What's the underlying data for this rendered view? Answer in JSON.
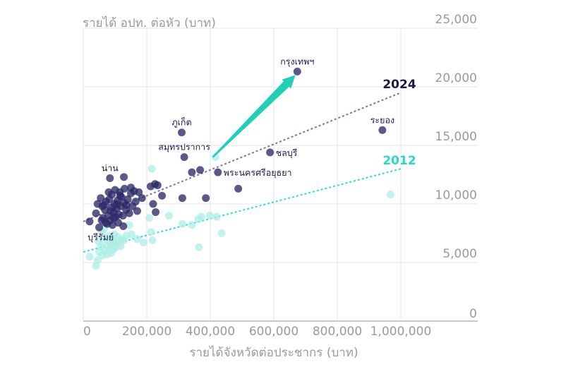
{
  "chart_data": {
    "type": "scatter",
    "ylabel": "รายได้ อปท. ต่อหัว (บาท)",
    "xlabel": "รายได้จังหวัดต่อประชากร (บาท)",
    "xlim": [
      0,
      1200000
    ],
    "ylim": [
      0,
      25000
    ],
    "x_ticks": [
      {
        "value": 0,
        "label": "0"
      },
      {
        "value": 200000,
        "label": "200,000"
      },
      {
        "value": 400000,
        "label": "400,000"
      },
      {
        "value": 600000,
        "label": "600,000"
      },
      {
        "value": 800000,
        "label": "800,000"
      },
      {
        "value": 1000000,
        "label": "1,000,000"
      }
    ],
    "y_ticks": [
      {
        "value": 0,
        "label": "0"
      },
      {
        "value": 5000,
        "label": "5,000"
      },
      {
        "value": 10000,
        "label": "10,000"
      },
      {
        "value": 15000,
        "label": "15,000"
      },
      {
        "value": 20000,
        "label": "20,000"
      },
      {
        "value": 25000,
        "label": "25,000"
      }
    ],
    "colors": {
      "y2024": "#2c2a66",
      "y2012": "#aeeee6",
      "trend2024": "#7a74a8",
      "trend2012": "#2ee0c8",
      "arrow": "#1fcfb8",
      "text": "#1c1848"
    },
    "series": [
      {
        "name": "2024",
        "label": "2024",
        "trend": [
          [
            0,
            8500
          ],
          [
            1000000,
            19500
          ]
        ],
        "points": [
          [
            674000,
            21300
          ],
          [
            942000,
            16300
          ],
          [
            310000,
            16100
          ],
          [
            318000,
            14000
          ],
          [
            588000,
            14400
          ],
          [
            84000,
            12200
          ],
          [
            368000,
            12900
          ],
          [
            342000,
            12700
          ],
          [
            424000,
            12700
          ],
          [
            488000,
            11300
          ],
          [
            312000,
            10500
          ],
          [
            386000,
            10500
          ],
          [
            128000,
            12300
          ],
          [
            150000,
            11400
          ],
          [
            212000,
            11500
          ],
          [
            226000,
            11700
          ],
          [
            234000,
            11600
          ],
          [
            248000,
            10700
          ],
          [
            220000,
            10000
          ],
          [
            228000,
            9300
          ],
          [
            20000,
            8500
          ],
          [
            40000,
            9200
          ],
          [
            45000,
            10000
          ],
          [
            55000,
            10500
          ],
          [
            60000,
            9800
          ],
          [
            62000,
            8800
          ],
          [
            68000,
            9500
          ],
          [
            72000,
            10200
          ],
          [
            75000,
            8300
          ],
          [
            78000,
            9000
          ],
          [
            80000,
            11000
          ],
          [
            82000,
            10400
          ],
          [
            85000,
            8600
          ],
          [
            88000,
            9700
          ],
          [
            90000,
            10800
          ],
          [
            92000,
            8200
          ],
          [
            95000,
            9300
          ],
          [
            98000,
            10000
          ],
          [
            100000,
            11200
          ],
          [
            102000,
            8900
          ],
          [
            105000,
            9600
          ],
          [
            108000,
            10300
          ],
          [
            110000,
            8400
          ],
          [
            112000,
            9100
          ],
          [
            115000,
            11000
          ],
          [
            118000,
            9800
          ],
          [
            120000,
            10600
          ],
          [
            125000,
            9000
          ],
          [
            128000,
            10100
          ],
          [
            130000,
            11300
          ],
          [
            135000,
            9500
          ],
          [
            140000,
            10400
          ],
          [
            145000,
            9200
          ],
          [
            150000,
            10900
          ],
          [
            155000,
            9800
          ],
          [
            160000,
            11100
          ],
          [
            165000,
            10200
          ],
          [
            170000,
            9400
          ],
          [
            175000,
            11000
          ],
          [
            185000,
            10500
          ],
          [
            50000,
            8000
          ],
          [
            58000,
            8600
          ],
          [
            65000,
            9900
          ],
          [
            70000,
            8400
          ],
          [
            86000,
            9400
          ],
          [
            96000,
            8800
          ],
          [
            106000,
            10000
          ],
          [
            116000,
            10700
          ],
          [
            126000,
            8100
          ],
          [
            136000,
            9900
          ]
        ]
      },
      {
        "name": "2012",
        "label": "2012",
        "trend": [
          [
            0,
            5900
          ],
          [
            1000000,
            13000
          ]
        ],
        "points": [
          [
            968000,
            10800
          ],
          [
            312000,
            8300
          ],
          [
            342000,
            8200
          ],
          [
            362000,
            8700
          ],
          [
            372000,
            8900
          ],
          [
            398000,
            9000
          ],
          [
            416000,
            14000
          ],
          [
            420000,
            8900
          ],
          [
            436000,
            7500
          ],
          [
            364000,
            6300
          ],
          [
            216000,
            13000
          ],
          [
            224000,
            11500
          ],
          [
            208000,
            8800
          ],
          [
            214000,
            7600
          ],
          [
            270000,
            9000
          ],
          [
            218000,
            6900
          ],
          [
            190000,
            6700
          ],
          [
            170000,
            7000
          ],
          [
            152000,
            7400
          ],
          [
            145000,
            8200
          ],
          [
            20000,
            5500
          ],
          [
            40000,
            4700
          ],
          [
            45000,
            5200
          ],
          [
            50000,
            5900
          ],
          [
            55000,
            6300
          ],
          [
            60000,
            5600
          ],
          [
            62000,
            6700
          ],
          [
            68000,
            6000
          ],
          [
            72000,
            7100
          ],
          [
            75000,
            5700
          ],
          [
            78000,
            6400
          ],
          [
            80000,
            6900
          ],
          [
            82000,
            7300
          ],
          [
            85000,
            6200
          ],
          [
            88000,
            5800
          ],
          [
            90000,
            7000
          ],
          [
            92000,
            6600
          ],
          [
            95000,
            6100
          ],
          [
            98000,
            7400
          ],
          [
            100000,
            6800
          ],
          [
            104000,
            6300
          ],
          [
            108000,
            7200
          ],
          [
            112000,
            6700
          ],
          [
            118000,
            6400
          ],
          [
            122000,
            7000
          ],
          [
            128000,
            6900
          ],
          [
            135000,
            7300
          ],
          [
            48000,
            6800
          ],
          [
            58000,
            7600
          ],
          [
            66000,
            7900
          ]
        ]
      }
    ],
    "annotations": [
      {
        "label": "กรุงเทพฯ",
        "x": 674000,
        "y": 21300,
        "anchor": "middle",
        "placement": "above"
      },
      {
        "label": "ระยอง",
        "x": 942000,
        "y": 16300,
        "anchor": "middle",
        "placement": "above"
      },
      {
        "label": "ภูเก็ต",
        "x": 310000,
        "y": 16100,
        "anchor": "middle",
        "placement": "above"
      },
      {
        "label": "สมุทรปราการ",
        "x": 318000,
        "y": 14000,
        "anchor": "middle",
        "placement": "above"
      },
      {
        "label": "ชลบุรี",
        "x": 588000,
        "y": 14400,
        "anchor": "start",
        "placement": "right"
      },
      {
        "label": "พระนครศรีอยุธยา",
        "x": 424000,
        "y": 12700,
        "anchor": "start",
        "placement": "right"
      },
      {
        "label": "น่าน",
        "x": 84000,
        "y": 12200,
        "anchor": "middle",
        "placement": "above"
      },
      {
        "label": "บุรีรัมย์",
        "x": 55000,
        "y": 6300,
        "anchor": "middle",
        "placement": "above"
      }
    ],
    "arrow": {
      "from": [
        408000,
        14000
      ],
      "to": [
        668000,
        21000
      ]
    }
  }
}
